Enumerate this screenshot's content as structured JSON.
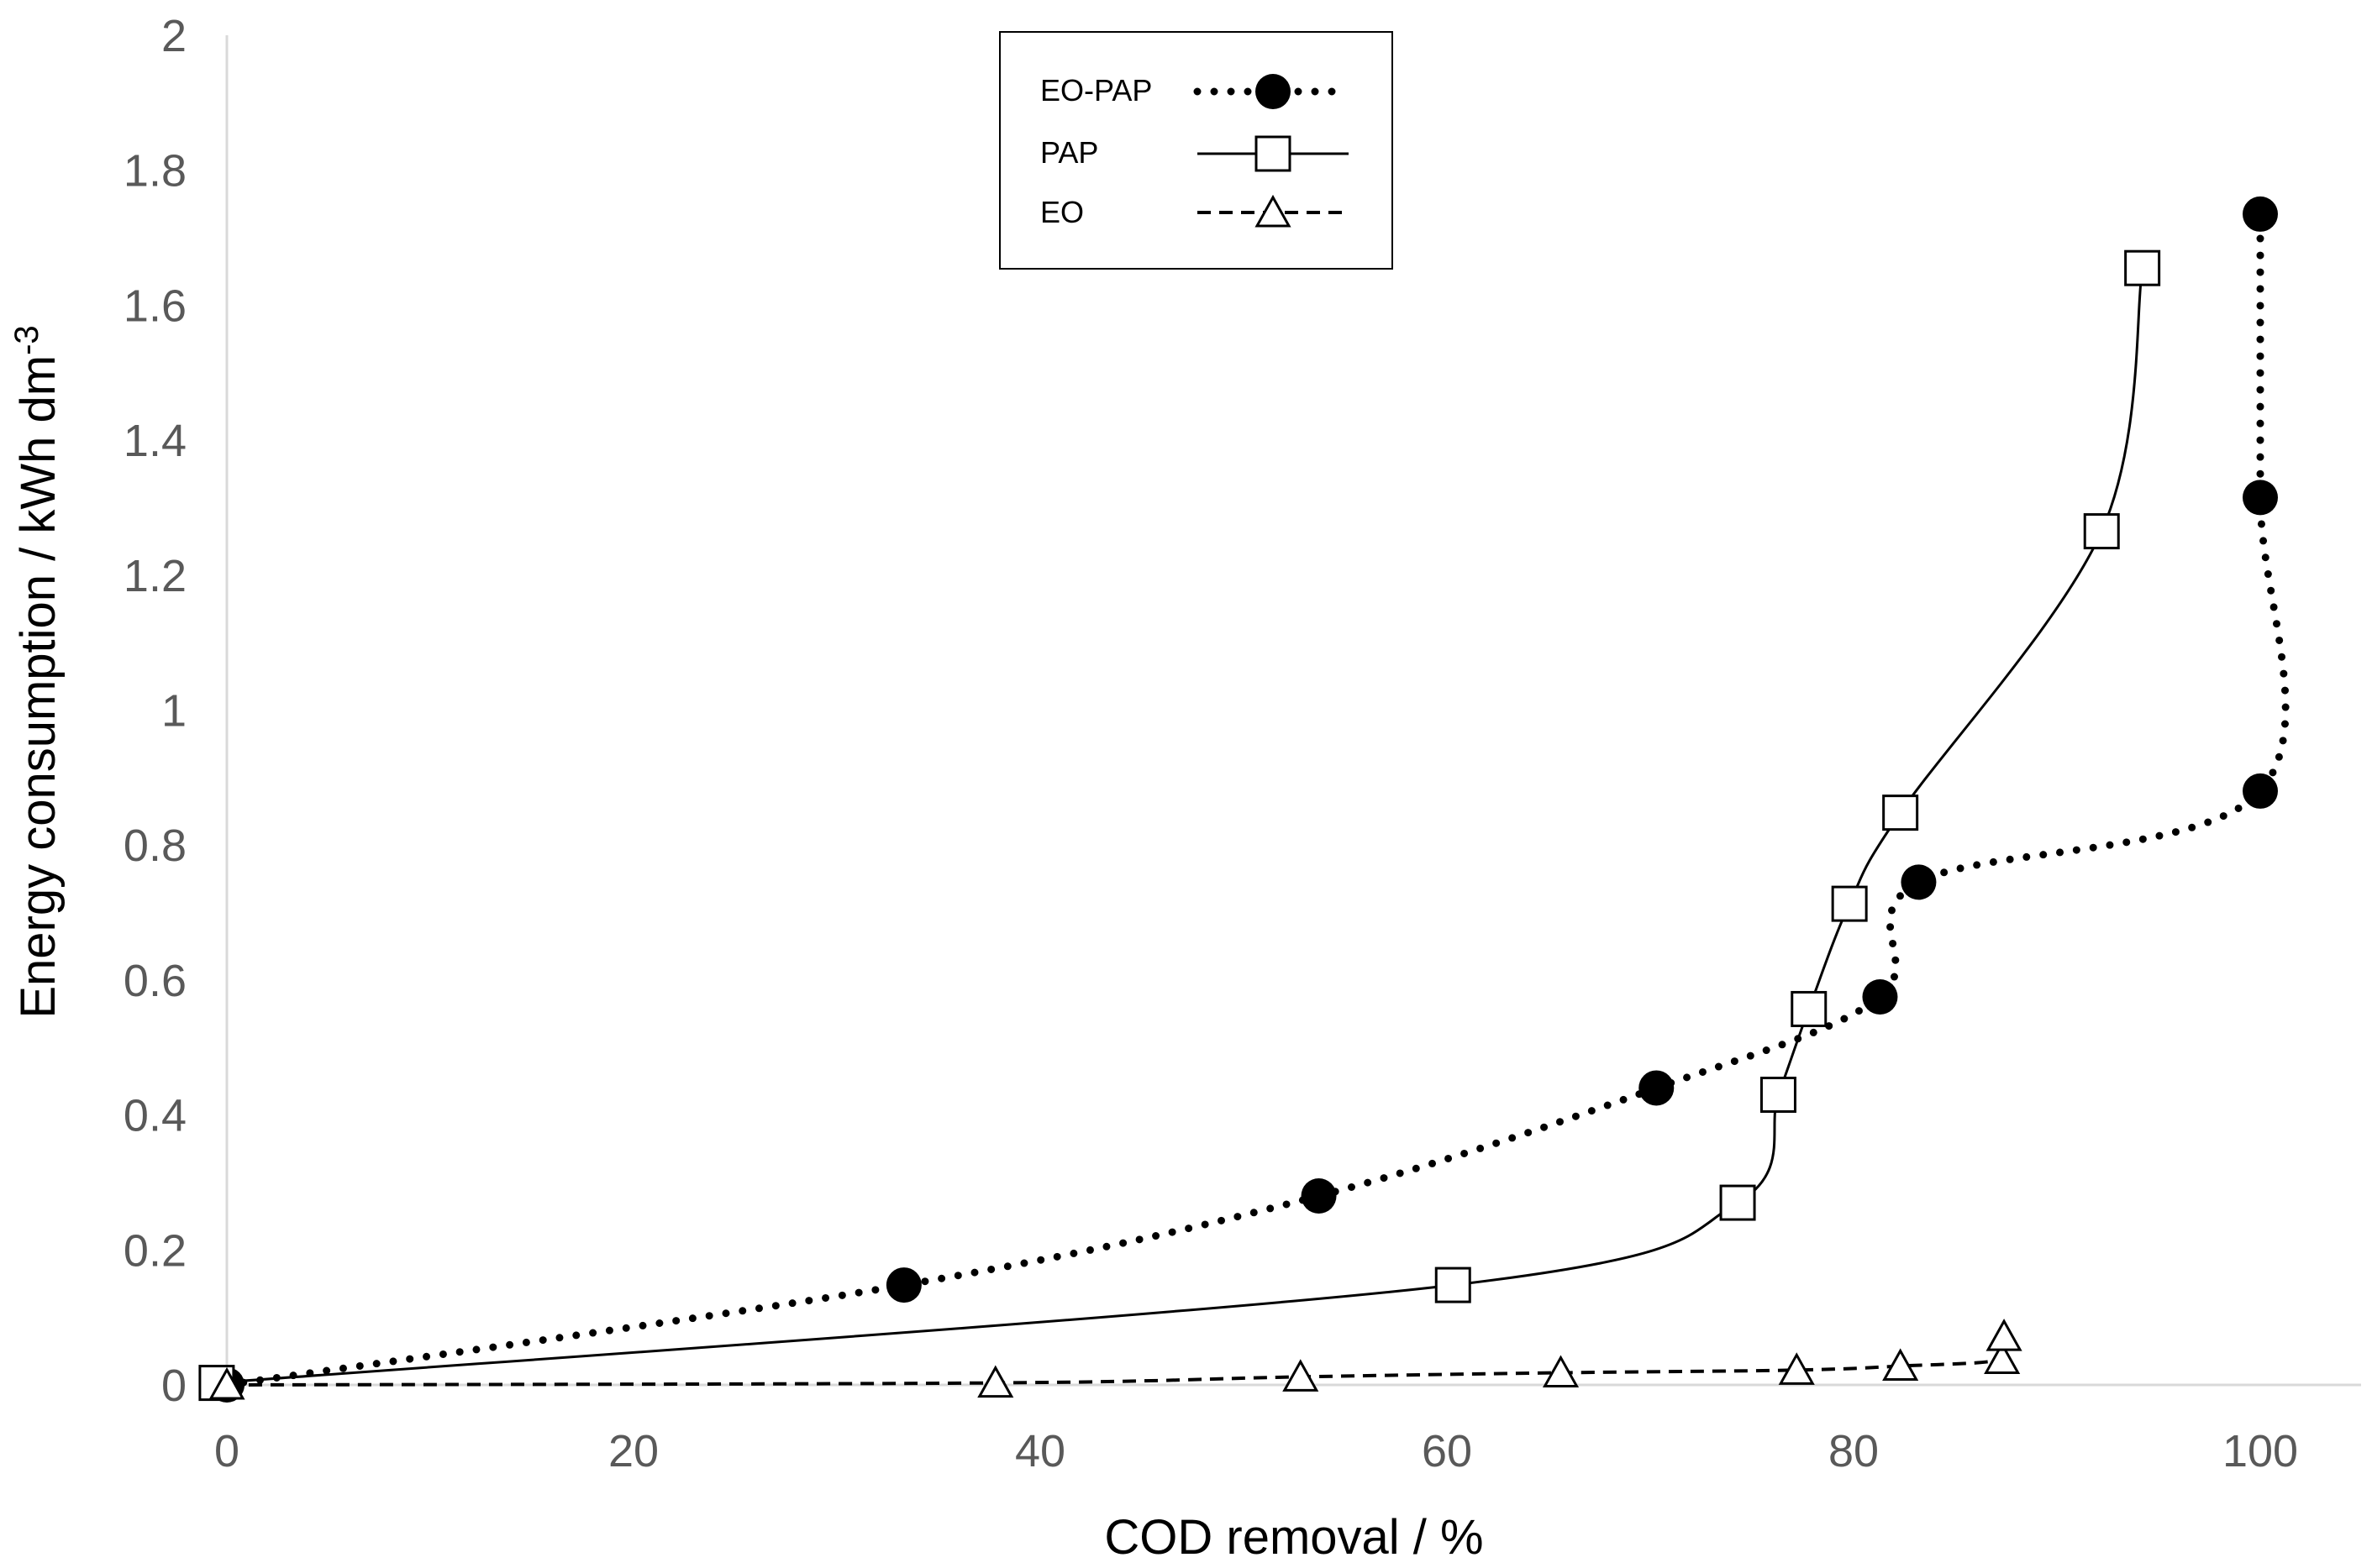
{
  "chart_data": {
    "type": "line",
    "title": "",
    "xlabel": "COD removal / %",
    "ylabel": "Energy consumption / kWh dm",
    "ylabel_superscript": "-3",
    "xlim": [
      0,
      105
    ],
    "ylim": [
      0,
      2
    ],
    "xticks": [
      0,
      20,
      40,
      60,
      80,
      100
    ],
    "yticks": [
      0,
      0.2,
      0.4,
      0.6,
      0.8,
      1,
      1.2,
      1.4,
      1.6,
      1.8,
      2
    ],
    "x_tick_labels": [
      "0",
      "20",
      "40",
      "60",
      "80",
      "100"
    ],
    "y_tick_labels": [
      "0",
      "0.2",
      "0.4",
      "0.6",
      "0.8",
      "1",
      "1.2",
      "1.4",
      "1.6",
      "1.8",
      "2"
    ],
    "grid": false,
    "legend_position": "top-center",
    "series": [
      {
        "name": "EO-PAP",
        "marker": "filled-circle",
        "line": "dotted",
        "points": [
          [
            0,
            0
          ],
          [
            33.3,
            0.148
          ],
          [
            53.7,
            0.28
          ],
          [
            70.3,
            0.44
          ],
          [
            81.3,
            0.575
          ],
          [
            83.2,
            0.745
          ],
          [
            100,
            0.88
          ],
          [
            100,
            1.315
          ],
          [
            100,
            1.735
          ]
        ]
      },
      {
        "name": "PAP",
        "marker": "open-square",
        "line": "solid",
        "points": [
          [
            -0.5,
            0.003
          ],
          [
            60.3,
            0.148
          ],
          [
            74.3,
            0.27
          ],
          [
            76.3,
            0.43
          ],
          [
            77.8,
            0.557
          ],
          [
            79.8,
            0.713
          ],
          [
            82.3,
            0.848
          ],
          [
            92.2,
            1.265
          ],
          [
            94.2,
            1.655
          ]
        ]
      },
      {
        "name": "EO",
        "marker": "open-triangle",
        "line": "dashed",
        "points": [
          [
            0,
            0
          ],
          [
            37.8,
            0.003
          ],
          [
            52.8,
            0.012
          ],
          [
            65.6,
            0.018
          ],
          [
            77.2,
            0.022
          ],
          [
            82.3,
            0.028
          ],
          [
            87.3,
            0.038
          ],
          [
            87.4,
            0.072
          ]
        ]
      }
    ]
  }
}
